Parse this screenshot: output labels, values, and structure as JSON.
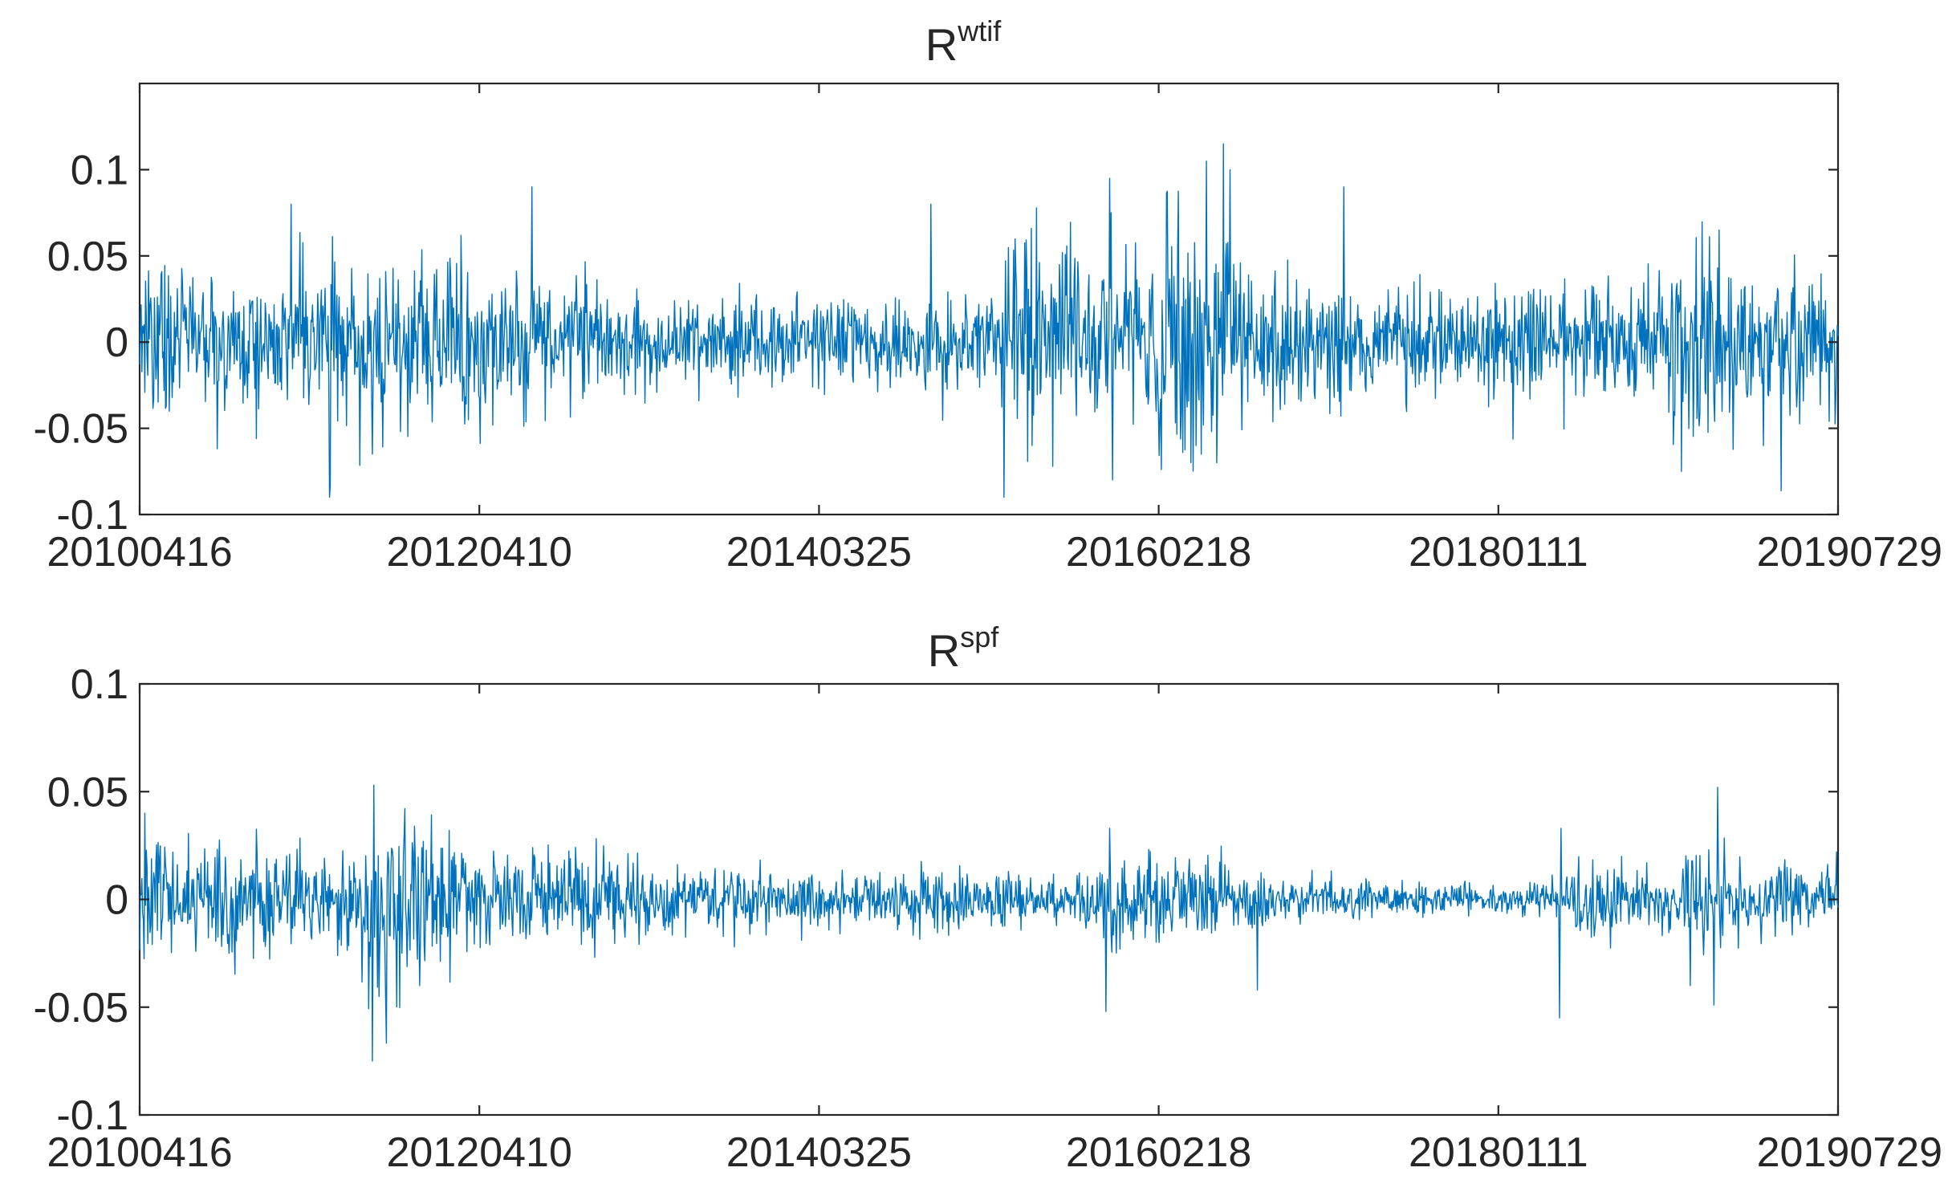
{
  "colors": {
    "series": "#0072BD",
    "axes": "#262626",
    "background": "#ffffff"
  },
  "chart_data": [
    {
      "type": "line",
      "title": "R",
      "title_superscript": "wtif",
      "xlabel": "",
      "ylabel": "",
      "x_start": "20100416",
      "x_end": "20190729",
      "x_ticks": [
        "20100416",
        "20120410",
        "20140325",
        "20160218",
        "20180111",
        "20190729"
      ],
      "y_ticks": [
        "-0.1",
        "-0.05",
        "0",
        "0.05",
        "0.1"
      ],
      "y_tick_values": [
        -0.1,
        -0.05,
        0,
        0.05,
        0.1
      ],
      "ylim": [
        -0.1,
        0.15
      ],
      "grid": false,
      "n_points": 2300,
      "volatility_profile": [
        [
          0,
          0.02
        ],
        [
          0.1,
          0.022
        ],
        [
          0.16,
          0.028
        ],
        [
          0.22,
          0.02
        ],
        [
          0.3,
          0.013
        ],
        [
          0.38,
          0.012
        ],
        [
          0.45,
          0.013
        ],
        [
          0.5,
          0.015
        ],
        [
          0.52,
          0.03
        ],
        [
          0.55,
          0.028
        ],
        [
          0.57,
          0.02
        ],
        [
          0.6,
          0.032
        ],
        [
          0.62,
          0.04
        ],
        [
          0.63,
          0.025
        ],
        [
          0.66,
          0.02
        ],
        [
          0.7,
          0.018
        ],
        [
          0.8,
          0.017
        ],
        [
          0.86,
          0.015
        ],
        [
          0.92,
          0.028
        ],
        [
          0.95,
          0.02
        ],
        [
          1.0,
          0.02
        ]
      ],
      "spikes": [
        [
          0.089,
          0.08
        ],
        [
          0.112,
          -0.09
        ],
        [
          0.137,
          -0.065
        ],
        [
          0.231,
          0.09
        ],
        [
          0.466,
          0.08
        ],
        [
          0.509,
          -0.09
        ],
        [
          0.571,
          0.095
        ],
        [
          0.572,
          0.075
        ],
        [
          0.573,
          -0.08
        ],
        [
          0.628,
          0.105
        ],
        [
          0.622,
          -0.06
        ],
        [
          0.625,
          -0.065
        ],
        [
          0.638,
          0.115
        ],
        [
          0.642,
          0.1
        ],
        [
          0.634,
          -0.07
        ],
        [
          0.709,
          0.09
        ],
        [
          0.908,
          -0.075
        ],
        [
          0.93,
          0.065
        ],
        [
          0.956,
          -0.06
        ]
      ]
    },
    {
      "type": "line",
      "title": "R",
      "title_superscript": "spf",
      "xlabel": "",
      "ylabel": "",
      "x_start": "20100416",
      "x_end": "20190729",
      "x_ticks": [
        "20100416",
        "20120410",
        "20140325",
        "20160218",
        "20180111",
        "20190729"
      ],
      "y_ticks": [
        "-0.1",
        "-0.05",
        "0",
        "0.05",
        "0.1"
      ],
      "y_tick_values": [
        -0.1,
        -0.05,
        0,
        0.05,
        0.1
      ],
      "ylim": [
        -0.1,
        0.1
      ],
      "grid": false,
      "n_points": 2300,
      "volatility_profile": [
        [
          0,
          0.015
        ],
        [
          0.05,
          0.013
        ],
        [
          0.1,
          0.009
        ],
        [
          0.13,
          0.01
        ],
        [
          0.135,
          0.025
        ],
        [
          0.17,
          0.018
        ],
        [
          0.2,
          0.012
        ],
        [
          0.3,
          0.009
        ],
        [
          0.4,
          0.006
        ],
        [
          0.5,
          0.007
        ],
        [
          0.55,
          0.006
        ],
        [
          0.57,
          0.01
        ],
        [
          0.62,
          0.01
        ],
        [
          0.66,
          0.006
        ],
        [
          0.72,
          0.004
        ],
        [
          0.8,
          0.003
        ],
        [
          0.84,
          0.004
        ],
        [
          0.85,
          0.01
        ],
        [
          0.88,
          0.007
        ],
        [
          0.9,
          0.006
        ],
        [
          0.92,
          0.012
        ],
        [
          0.95,
          0.008
        ],
        [
          1.0,
          0.008
        ]
      ],
      "spikes": [
        [
          0.003,
          0.04
        ],
        [
          0.138,
          0.053
        ],
        [
          0.137,
          -0.075
        ],
        [
          0.141,
          -0.045
        ],
        [
          0.165,
          -0.04
        ],
        [
          0.569,
          -0.052
        ],
        [
          0.571,
          0.033
        ],
        [
          0.658,
          -0.042
        ],
        [
          0.836,
          -0.055
        ],
        [
          0.837,
          0.033
        ],
        [
          0.929,
          0.052
        ],
        [
          0.927,
          -0.049
        ],
        [
          0.913,
          -0.04
        ]
      ]
    }
  ]
}
